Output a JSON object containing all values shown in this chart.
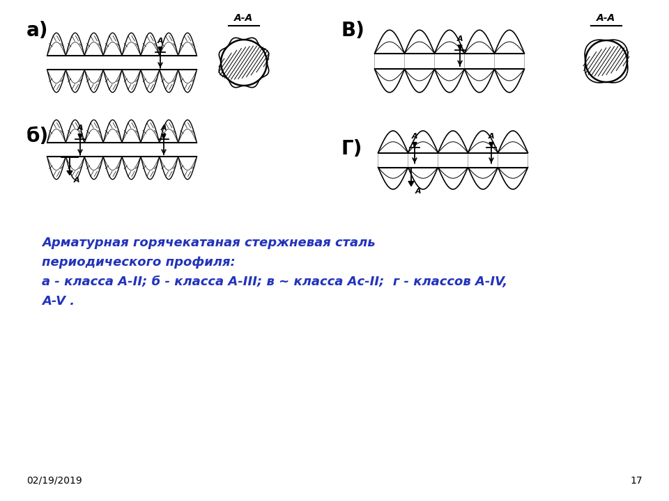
{
  "bg_color": "#ffffff",
  "label_a": "а)",
  "label_b": "б)",
  "label_v": "В)",
  "label_g": "Г)",
  "caption_line1": "Арматурная горячекатаная стержневая сталь",
  "caption_line2": "периодического профиля:",
  "caption_line3": "а - класса А-II; б - класса А-III; в ~ класса Ас-II;  г - классов А-IV,",
  "caption_line4": "А-V .",
  "date_text": "02/19/2019",
  "page_num": "17",
  "caption_color": "#2233bb",
  "footer_color": "#000000",
  "drawing_color": "#000000"
}
